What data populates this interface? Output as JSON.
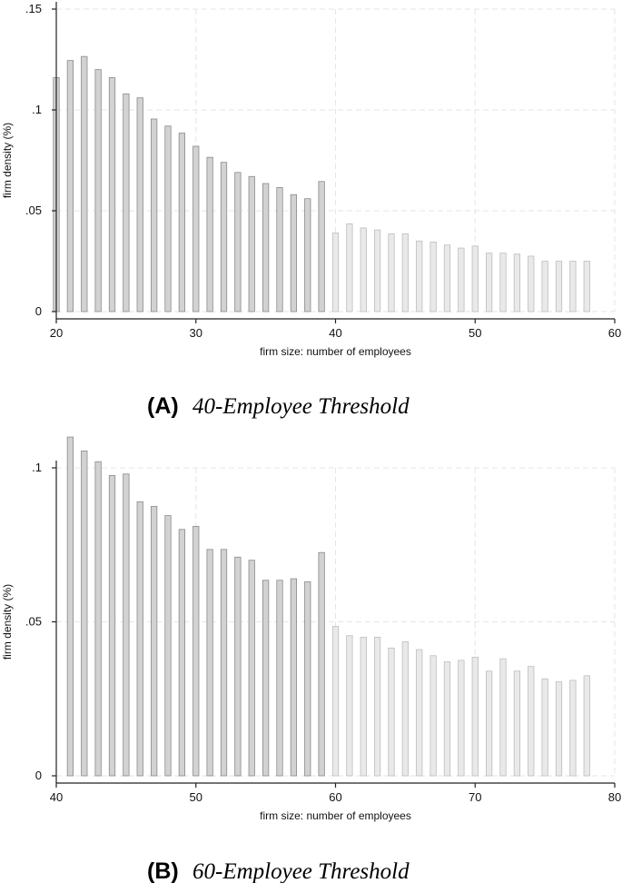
{
  "chart_data": [
    {
      "type": "bar",
      "caption_letter": "(A)",
      "caption_text": "40-Employee Threshold",
      "xlabel": "firm size: number of employees",
      "ylabel": "firm density (%)",
      "xlim": [
        20,
        60
      ],
      "ylim": [
        0,
        0.15
      ],
      "xticks": [
        "20",
        "30",
        "40",
        "50",
        "60"
      ],
      "yticks": [
        "0",
        ".05",
        ".1",
        ".15"
      ],
      "threshold": 40,
      "grid": true,
      "x": [
        20,
        21,
        22,
        23,
        24,
        25,
        26,
        27,
        28,
        29,
        30,
        31,
        32,
        33,
        34,
        35,
        36,
        37,
        38,
        39,
        40,
        41,
        42,
        43,
        44,
        45,
        46,
        47,
        48,
        49,
        50,
        51,
        52,
        53,
        54,
        55,
        56,
        57,
        58
      ],
      "values": [
        0.116,
        0.1245,
        0.1265,
        0.12,
        0.116,
        0.108,
        0.106,
        0.0955,
        0.092,
        0.0885,
        0.082,
        0.0765,
        0.074,
        0.069,
        0.067,
        0.0635,
        0.0615,
        0.058,
        0.056,
        0.0645,
        0.039,
        0.0435,
        0.0415,
        0.0405,
        0.0385,
        0.0385,
        0.035,
        0.0345,
        0.033,
        0.0315,
        0.0325,
        0.029,
        0.029,
        0.0285,
        0.0275,
        0.025,
        0.025,
        0.025,
        0.025
      ]
    },
    {
      "type": "bar",
      "caption_letter": "(B)",
      "caption_text": "60-Employee Threshold",
      "xlabel": "firm size: number of employees",
      "ylabel": "firm density (%)",
      "xlim": [
        40,
        80
      ],
      "ylim": [
        0,
        0.1
      ],
      "xticks": [
        "40",
        "50",
        "60",
        "70",
        "80"
      ],
      "yticks": [
        "0",
        ".05",
        ".1"
      ],
      "threshold": 60,
      "grid": true,
      "x": [
        41,
        42,
        43,
        44,
        45,
        46,
        47,
        48,
        49,
        50,
        51,
        52,
        53,
        54,
        55,
        56,
        57,
        58,
        59,
        60,
        61,
        62,
        63,
        64,
        65,
        66,
        67,
        68,
        69,
        70,
        71,
        72,
        73,
        74,
        75,
        76,
        77,
        78
      ],
      "values": [
        0.11,
        0.1055,
        0.102,
        0.0975,
        0.098,
        0.089,
        0.0875,
        0.0845,
        0.08,
        0.081,
        0.0735,
        0.0735,
        0.071,
        0.07,
        0.0635,
        0.0635,
        0.064,
        0.063,
        0.0725,
        0.0485,
        0.0455,
        0.045,
        0.045,
        0.0415,
        0.0435,
        0.041,
        0.039,
        0.037,
        0.0375,
        0.0385,
        0.034,
        0.038,
        0.034,
        0.0355,
        0.0315,
        0.0305,
        0.031,
        0.0325
      ]
    }
  ],
  "colors": {
    "bar_before": "#d2d2d2",
    "bar_before_stroke": "#8a8a8a",
    "bar_after": "#e9e9e9",
    "bar_after_stroke": "#bdbdbd",
    "grid": "#e6e6e6",
    "axis": "#222222"
  }
}
